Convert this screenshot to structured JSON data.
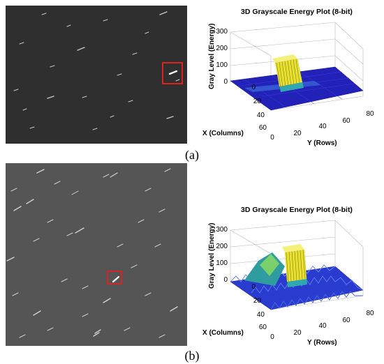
{
  "figure": {
    "panels": [
      {
        "caption": "(a)",
        "plot": {
          "title": "3D Grayscale Energy Plot (8-bit)",
          "zlabel": "Gray Level (Energy)",
          "xlabel": "X (Columns)",
          "ylabel": "Y (Rows)",
          "z_ticks": [
            "300",
            "200",
            "100",
            "0"
          ],
          "x_ticks": [
            "0",
            "20",
            "40",
            "60"
          ],
          "y_ticks": [
            "0",
            "20",
            "40",
            "60",
            "80"
          ]
        }
      },
      {
        "caption": "(b)",
        "plot": {
          "title": "3D Grayscale Energy Plot (8-bit)",
          "zlabel": "Gray Level (Energy)",
          "xlabel": "X (Columns)",
          "ylabel": "Y (Rows)",
          "z_ticks": [
            "300",
            "200",
            "100",
            "0"
          ],
          "x_ticks": [
            "0",
            "20",
            "40",
            "60"
          ],
          "y_ticks": [
            "0",
            "20",
            "40",
            "60",
            "80"
          ]
        }
      }
    ]
  },
  "colors": {
    "frame_bg": "#2f2f2f",
    "frame_bg_b": "#555555",
    "highlight_box": "#e02020",
    "surface_low": "#1c1cb4",
    "surface_high": "#ffff30"
  }
}
